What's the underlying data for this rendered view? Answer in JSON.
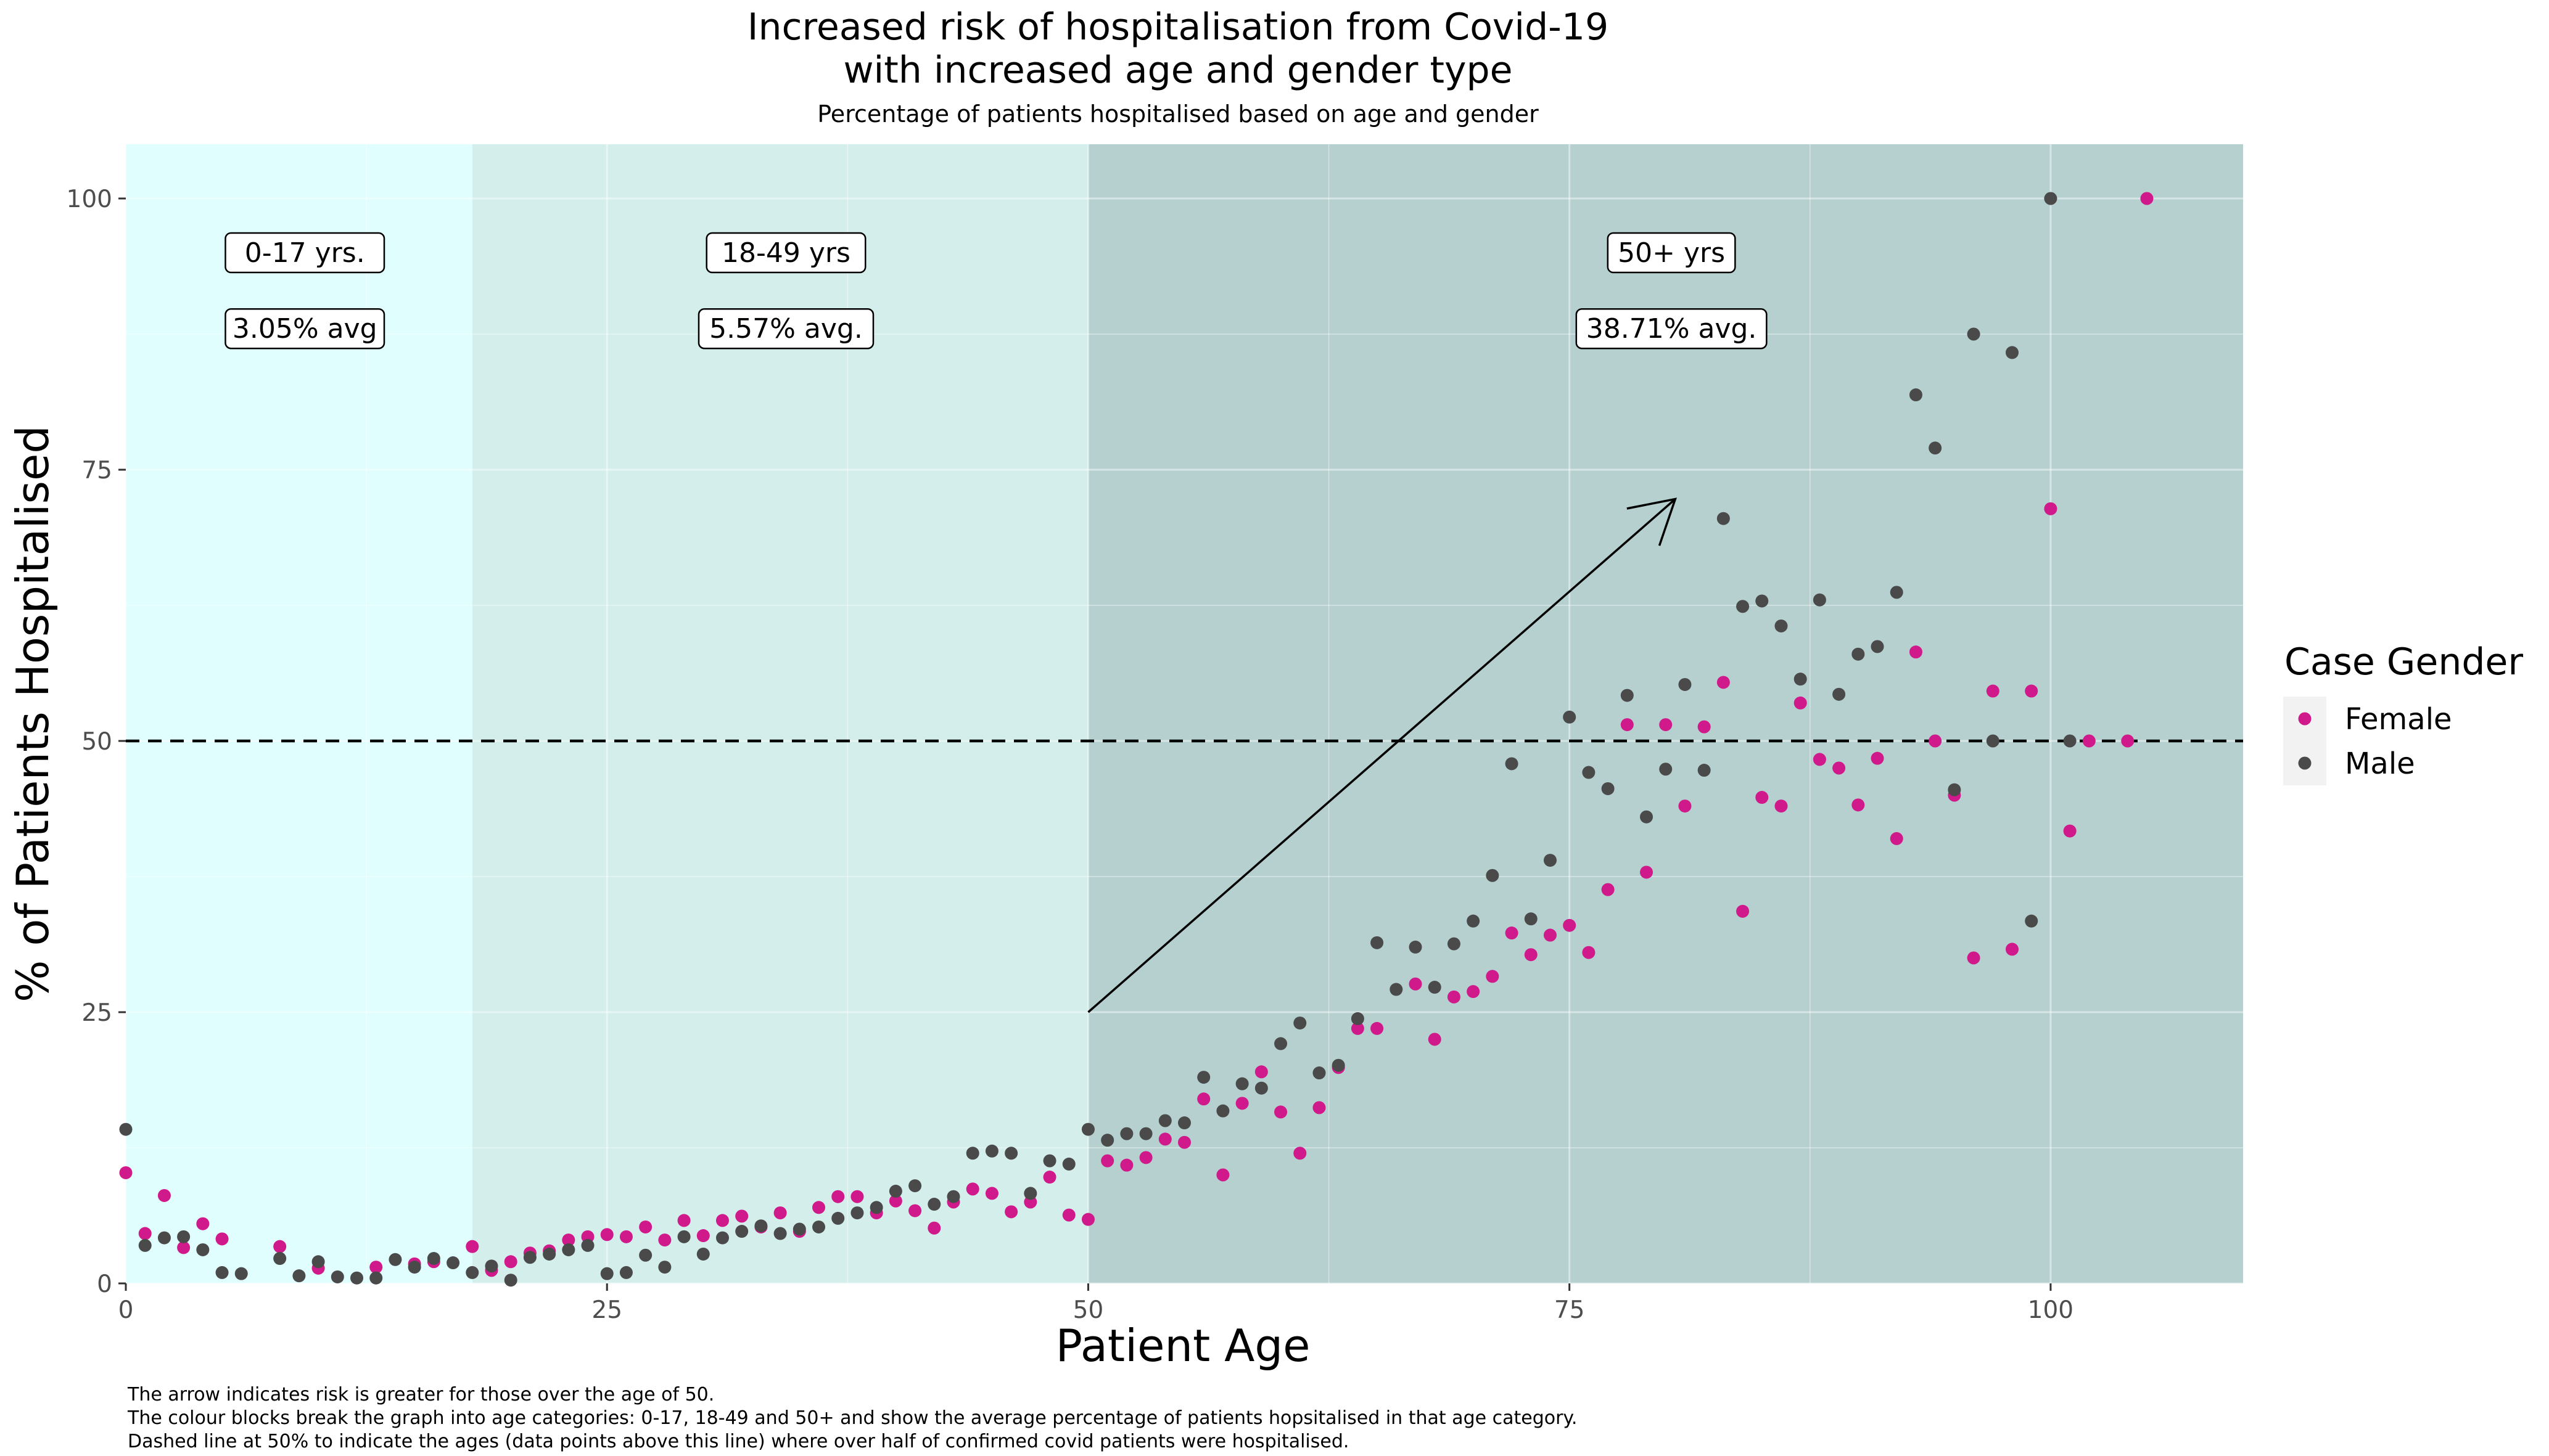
{
  "chart_data": {
    "type": "scatter",
    "title": "Increased risk of hospitalisation from Covid-19",
    "title_line2": "with increased age and gender type",
    "subtitle": "Percentage of patients hospitalised based on age and gender",
    "xlabel": "Patient Age",
    "ylabel": "% of Patients Hospitalised",
    "xlim": [
      0,
      110
    ],
    "ylim": [
      0,
      105
    ],
    "x_ticks": [
      0,
      25,
      50,
      75,
      100
    ],
    "y_ticks": [
      0,
      25,
      50,
      75,
      100
    ],
    "grid": true,
    "legend": {
      "title": "Case Gender",
      "position": "right",
      "entries": [
        "Female",
        "Male"
      ]
    },
    "colors": {
      "Female": "#d0198a",
      "Male": "#4a4a4a",
      "band_0_17": "#e0fefe",
      "band_18_49": "#d4eeec",
      "band_50_plus": "#b5d0cf",
      "reference_line": "#000000"
    },
    "age_bands": [
      {
        "from": 0,
        "to": 18,
        "label": "0-17 yrs.",
        "avg_label": "3.05% avg"
      },
      {
        "from": 18,
        "to": 50,
        "label": "18-49 yrs",
        "avg_label": "5.57% avg."
      },
      {
        "from": 50,
        "to": 110,
        "label": "50+ yrs",
        "avg_label": "38.71% avg."
      }
    ],
    "reference_line": {
      "y": 50,
      "style": "dashed"
    },
    "arrow": {
      "from": [
        50,
        25
      ],
      "to": [
        80.5,
        72.3
      ]
    },
    "series": [
      {
        "name": "Female",
        "points": [
          [
            0,
            10.2
          ],
          [
            1,
            4.6
          ],
          [
            2,
            8.1
          ],
          [
            3,
            3.3
          ],
          [
            4,
            5.5
          ],
          [
            5,
            4.1
          ],
          [
            8,
            3.4
          ],
          [
            10,
            1.4
          ],
          [
            13,
            1.5
          ],
          [
            15,
            1.8
          ],
          [
            16,
            2.0
          ],
          [
            18,
            3.4
          ],
          [
            19,
            1.2
          ],
          [
            20,
            2.0
          ],
          [
            21,
            2.8
          ],
          [
            22,
            3.0
          ],
          [
            23,
            4.0
          ],
          [
            24,
            4.3
          ],
          [
            25,
            4.5
          ],
          [
            26,
            4.3
          ],
          [
            27,
            5.2
          ],
          [
            28,
            4.0
          ],
          [
            29,
            5.8
          ],
          [
            30,
            4.4
          ],
          [
            31,
            5.8
          ],
          [
            32,
            6.2
          ],
          [
            33,
            5.2
          ],
          [
            34,
            6.5
          ],
          [
            35,
            4.8
          ],
          [
            36,
            7.0
          ],
          [
            37,
            8.0
          ],
          [
            38,
            8.0
          ],
          [
            39,
            6.5
          ],
          [
            40,
            7.6
          ],
          [
            41,
            6.7
          ],
          [
            42,
            5.1
          ],
          [
            43,
            7.5
          ],
          [
            44,
            8.7
          ],
          [
            45,
            8.3
          ],
          [
            46,
            6.6
          ],
          [
            47,
            7.5
          ],
          [
            48,
            9.8
          ],
          [
            49,
            6.3
          ],
          [
            50,
            5.9
          ],
          [
            51,
            11.3
          ],
          [
            52,
            10.9
          ],
          [
            53,
            11.6
          ],
          [
            54,
            13.3
          ],
          [
            55,
            13.0
          ],
          [
            56,
            17.0
          ],
          [
            57,
            10.0
          ],
          [
            58,
            16.6
          ],
          [
            59,
            19.5
          ],
          [
            60,
            15.8
          ],
          [
            61,
            12.0
          ],
          [
            62,
            16.2
          ],
          [
            63,
            19.9
          ],
          [
            64,
            23.5
          ],
          [
            65,
            23.5
          ],
          [
            67,
            27.6
          ],
          [
            68,
            22.5
          ],
          [
            69,
            26.4
          ],
          [
            70,
            26.9
          ],
          [
            71,
            28.3
          ],
          [
            72,
            32.3
          ],
          [
            73,
            30.3
          ],
          [
            74,
            32.1
          ],
          [
            75,
            33.0
          ],
          [
            76,
            30.5
          ],
          [
            77,
            36.3
          ],
          [
            78,
            51.5
          ],
          [
            79,
            37.9
          ],
          [
            80,
            51.5
          ],
          [
            81,
            44.0
          ],
          [
            82,
            51.3
          ],
          [
            83,
            55.4
          ],
          [
            84,
            34.3
          ],
          [
            85,
            44.8
          ],
          [
            86,
            44.0
          ],
          [
            87,
            53.5
          ],
          [
            88,
            48.3
          ],
          [
            89,
            47.5
          ],
          [
            90,
            44.1
          ],
          [
            91,
            48.4
          ],
          [
            92,
            41.0
          ],
          [
            93,
            58.2
          ],
          [
            94,
            50.0
          ],
          [
            95,
            45.0
          ],
          [
            96,
            30.0
          ],
          [
            97,
            54.6
          ],
          [
            98,
            30.8
          ],
          [
            99,
            54.6
          ],
          [
            100,
            71.4
          ],
          [
            101,
            41.7
          ],
          [
            102,
            50.0
          ],
          [
            104,
            50.0
          ],
          [
            105,
            100.0
          ]
        ]
      },
      {
        "name": "Male",
        "points": [
          [
            0,
            14.2
          ],
          [
            1,
            3.5
          ],
          [
            2,
            4.2
          ],
          [
            3,
            4.3
          ],
          [
            4,
            3.1
          ],
          [
            5,
            1.0
          ],
          [
            6,
            0.9
          ],
          [
            8,
            2.3
          ],
          [
            9,
            0.7
          ],
          [
            10,
            2.0
          ],
          [
            11,
            0.6
          ],
          [
            12,
            0.5
          ],
          [
            13,
            0.5
          ],
          [
            14,
            2.2
          ],
          [
            15,
            1.5
          ],
          [
            16,
            2.3
          ],
          [
            17,
            1.9
          ],
          [
            18,
            1.0
          ],
          [
            19,
            1.6
          ],
          [
            20,
            0.3
          ],
          [
            21,
            2.4
          ],
          [
            22,
            2.7
          ],
          [
            23,
            3.1
          ],
          [
            24,
            3.5
          ],
          [
            25,
            0.9
          ],
          [
            26,
            1.0
          ],
          [
            27,
            2.6
          ],
          [
            28,
            1.5
          ],
          [
            29,
            4.3
          ],
          [
            30,
            2.7
          ],
          [
            31,
            4.2
          ],
          [
            32,
            4.8
          ],
          [
            33,
            5.3
          ],
          [
            34,
            4.6
          ],
          [
            35,
            5.0
          ],
          [
            36,
            5.2
          ],
          [
            37,
            6.0
          ],
          [
            38,
            6.5
          ],
          [
            39,
            7.0
          ],
          [
            40,
            8.5
          ],
          [
            41,
            9.0
          ],
          [
            42,
            7.3
          ],
          [
            43,
            8.0
          ],
          [
            44,
            12.0
          ],
          [
            45,
            12.2
          ],
          [
            46,
            12.0
          ],
          [
            47,
            8.3
          ],
          [
            48,
            11.3
          ],
          [
            49,
            11.0
          ],
          [
            50,
            14.2
          ],
          [
            51,
            13.2
          ],
          [
            52,
            13.8
          ],
          [
            53,
            13.8
          ],
          [
            54,
            15.0
          ],
          [
            55,
            14.8
          ],
          [
            56,
            19.0
          ],
          [
            57,
            15.9
          ],
          [
            58,
            18.4
          ],
          [
            59,
            18.0
          ],
          [
            60,
            22.1
          ],
          [
            61,
            24.0
          ],
          [
            62,
            19.4
          ],
          [
            63,
            20.1
          ],
          [
            64,
            24.4
          ],
          [
            65,
            31.4
          ],
          [
            66,
            27.1
          ],
          [
            67,
            31.0
          ],
          [
            68,
            27.3
          ],
          [
            69,
            31.3
          ],
          [
            70,
            33.4
          ],
          [
            71,
            37.6
          ],
          [
            72,
            47.9
          ],
          [
            73,
            33.6
          ],
          [
            74,
            39.0
          ],
          [
            75,
            52.2
          ],
          [
            76,
            47.1
          ],
          [
            77,
            45.6
          ],
          [
            78,
            54.2
          ],
          [
            79,
            43.0
          ],
          [
            80,
            47.4
          ],
          [
            81,
            55.2
          ],
          [
            82,
            47.3
          ],
          [
            83,
            70.5
          ],
          [
            84,
            62.4
          ],
          [
            85,
            62.9
          ],
          [
            86,
            60.6
          ],
          [
            87,
            55.7
          ],
          [
            88,
            63.0
          ],
          [
            89,
            54.3
          ],
          [
            90,
            58.0
          ],
          [
            91,
            58.7
          ],
          [
            92,
            63.7
          ],
          [
            93,
            81.9
          ],
          [
            94,
            77.0
          ],
          [
            95,
            45.5
          ],
          [
            96,
            87.5
          ],
          [
            97,
            50.0
          ],
          [
            98,
            85.8
          ],
          [
            99,
            33.4
          ],
          [
            100,
            100.0
          ],
          [
            101,
            50.0
          ]
        ]
      }
    ]
  },
  "caption": [
    "The arrow indicates risk is greater for those over the age of 50.",
    "The colour blocks break the graph into age categories: 0-17, 18-49 and 50+ and show the average percentage of patients hopsitalised in that age category.",
    "Dashed line at 50% to indicate the ages (data points above this line) where over half of confirmed covid patients were hospitalised."
  ]
}
